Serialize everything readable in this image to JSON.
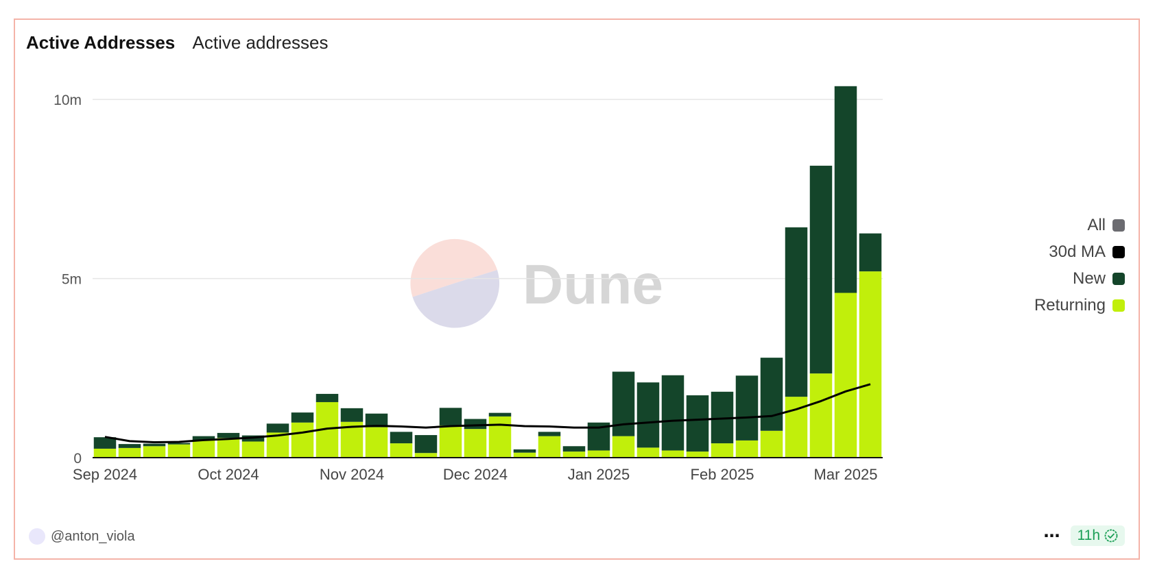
{
  "header": {
    "title": "Active Addresses",
    "subtitle": "Active addresses"
  },
  "footer": {
    "author": "@anton_viola",
    "more": "⋯",
    "age": "11h"
  },
  "colors": {
    "new": "#14452a",
    "returning": "#c1ef0b",
    "ma": "#000000",
    "all": "#6b6b70",
    "grid": "#e6e6e6",
    "border": "#f4b3a8"
  },
  "legend": [
    {
      "label": "All",
      "color": "#6b6b70"
    },
    {
      "label": "30d MA",
      "color": "#000000"
    },
    {
      "label": "New",
      "color": "#14452a"
    },
    {
      "label": "Returning",
      "color": "#c1ef0b"
    }
  ],
  "watermark": {
    "text": "Dune"
  },
  "chart_data": {
    "type": "bar",
    "stacked": true,
    "title": "Active Addresses",
    "subtitle": "Active addresses",
    "xlabel": "",
    "ylabel": "",
    "ylim": [
      0,
      10500000
    ],
    "yticks": [
      0,
      5000000,
      10000000
    ],
    "ytick_labels": [
      "0",
      "5m",
      "10m"
    ],
    "x_tick_labels": [
      {
        "label": "Sep 2024",
        "index": 0
      },
      {
        "label": "Oct 2024",
        "index": 5
      },
      {
        "label": "Nov 2024",
        "index": 10
      },
      {
        "label": "Dec 2024",
        "index": 15
      },
      {
        "label": "Jan 2025",
        "index": 20
      },
      {
        "label": "Feb 2025",
        "index": 25
      },
      {
        "label": "Mar 2025",
        "index": 30
      }
    ],
    "grid": true,
    "legend_position": "right",
    "series": [
      {
        "name": "Returning",
        "type": "bar",
        "values": [
          250000,
          270000,
          320000,
          370000,
          480000,
          550000,
          450000,
          700000,
          980000,
          1550000,
          1000000,
          850000,
          400000,
          130000,
          900000,
          800000,
          1150000,
          140000,
          600000,
          170000,
          200000,
          600000,
          280000,
          200000,
          170000,
          400000,
          480000,
          750000,
          1700000,
          2350000,
          4600000,
          5200000
        ]
      },
      {
        "name": "New",
        "type": "bar",
        "values": [
          320000,
          110000,
          70000,
          40000,
          120000,
          140000,
          170000,
          250000,
          280000,
          230000,
          380000,
          380000,
          320000,
          500000,
          490000,
          280000,
          100000,
          90000,
          120000,
          150000,
          780000,
          1800000,
          1820000,
          2100000,
          1570000,
          1440000,
          1810000,
          2040000,
          4730000,
          5800000,
          5770000,
          1060000
        ]
      },
      {
        "name": "30d MA",
        "type": "line",
        "values": [
          580000,
          460000,
          430000,
          440000,
          490000,
          520000,
          560000,
          620000,
          700000,
          810000,
          860000,
          890000,
          870000,
          840000,
          880000,
          900000,
          920000,
          880000,
          870000,
          840000,
          840000,
          930000,
          980000,
          1030000,
          1060000,
          1090000,
          1120000,
          1160000,
          1350000,
          1580000,
          1850000,
          2050000
        ]
      }
    ]
  }
}
